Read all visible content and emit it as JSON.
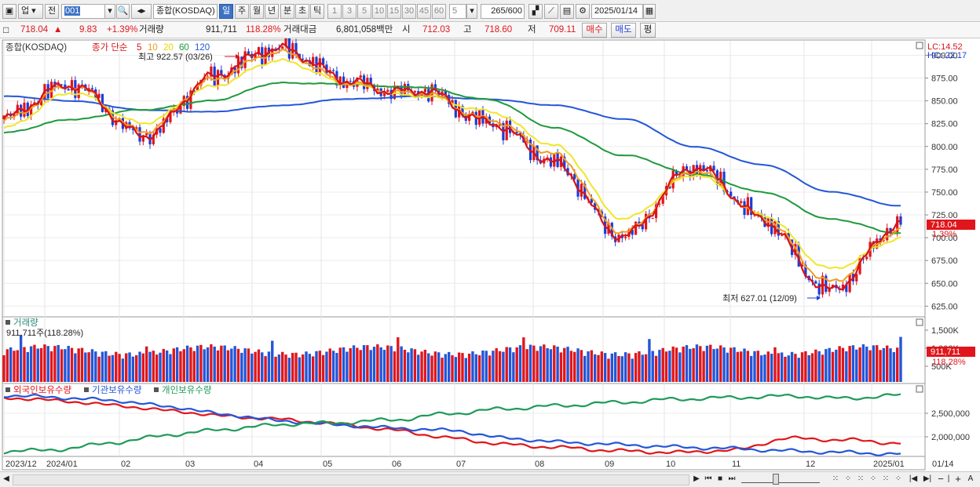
{
  "toolbar": {
    "market_label": "업",
    "prev_label": "전",
    "code_value": "001",
    "index_name": "종합(KOSDAQ)",
    "periods": [
      "일",
      "주",
      "월",
      "년",
      "분",
      "초",
      "틱"
    ],
    "active_period": "일",
    "intervals": [
      "1",
      "3",
      "5",
      "10",
      "15",
      "30",
      "45",
      "60"
    ],
    "interval_value": "5",
    "count_current": "265",
    "count_total": "/600",
    "date_value": "2025/01/14"
  },
  "infobar": {
    "price": "718.04",
    "change": "9.83",
    "change_pct": "+1.39%",
    "volume_label": "거래량",
    "volume": "911,711",
    "volume_pct": "118.28%",
    "amount_label": "거래대금",
    "amount": "6,801,058백만",
    "open_label": "시",
    "open": "712.03",
    "high_label": "고",
    "high": "718.60",
    "low_label": "저",
    "low": "709.11",
    "buy_label": "매수",
    "sell_label": "매도",
    "eval_label": "평"
  },
  "price_panel": {
    "title": "종합(KOSDAQ)",
    "ma_label": "종가 단순",
    "ma_periods": [
      "5",
      "10",
      "20",
      "60",
      "120"
    ],
    "ma_colors": [
      "#d4141b",
      "#f39b1e",
      "#f0e62a",
      "#1e9a3c",
      "#2356d8"
    ],
    "max_label": "최고 922.57 (03/26)",
    "min_label": "최저 627.01 (12/09)",
    "lc_label": "LC:14.52",
    "hc_label": "HC:-22.17",
    "current_price_tag": "718.04",
    "current_pct_tag": "1.39%",
    "y_ticks": [
      "900.00",
      "875.00",
      "850.00",
      "825.00",
      "800.00",
      "775.00",
      "750.00",
      "725.00",
      "700.00",
      "675.00",
      "650.00",
      "625.00"
    ]
  },
  "volume_panel": {
    "title": "거래량",
    "subtitle": "911,711주(118.28%)",
    "y_ticks": [
      "1,500K",
      "1,000K",
      "500K"
    ],
    "current_tag": "911,711",
    "current_pct_tag": "118.28%"
  },
  "holding_panel": {
    "series": [
      {
        "name": "외국인보유수량",
        "color": "#e0161c"
      },
      {
        "name": "기관보유수량",
        "color": "#2356d8"
      },
      {
        "name": "개인보유수량",
        "color": "#1e9a5a"
      }
    ],
    "y_ticks": [
      "2,500,000",
      "2,000,000"
    ]
  },
  "x_axis": {
    "labels": [
      "2023/12",
      "2024/01",
      "02",
      "03",
      "04",
      "05",
      "06",
      "07",
      "08",
      "09",
      "10",
      "11",
      "12",
      "2025/01"
    ],
    "right_label": "01/14"
  },
  "chart_data": {
    "type": "line",
    "title": "종합(KOSDAQ)",
    "x": [
      "2023/12",
      "2024/01",
      "02",
      "03",
      "04",
      "05",
      "06",
      "07",
      "08",
      "09",
      "10",
      "11",
      "12",
      "2025/01"
    ],
    "series": [
      {
        "name": "종가 단순 5",
        "values": [
          830,
          870,
          810,
          875,
          910,
          870,
          860,
          830,
          780,
          700,
          780,
          720,
          640,
          718
        ]
      },
      {
        "name": "종가 단순 10",
        "values": [
          828,
          868,
          815,
          872,
          905,
          868,
          858,
          832,
          790,
          705,
          775,
          722,
          650,
          710
        ]
      },
      {
        "name": "종가 단순 20",
        "values": [
          820,
          860,
          825,
          865,
          895,
          868,
          855,
          840,
          800,
          720,
          770,
          725,
          665,
          700
        ]
      },
      {
        "name": "종가 단순 60",
        "values": [
          815,
          830,
          840,
          850,
          870,
          868,
          865,
          852,
          820,
          790,
          770,
          750,
          720,
          705
        ]
      },
      {
        "name": "종가 단순 120",
        "values": [
          855,
          850,
          840,
          838,
          845,
          852,
          855,
          852,
          845,
          830,
          800,
          780,
          750,
          735
        ]
      }
    ],
    "ylim": [
      615,
      915
    ],
    "max": {
      "value": 922.57,
      "date": "03/26"
    },
    "min": {
      "value": 627.01,
      "date": "12/09"
    },
    "last": 718.04
  }
}
